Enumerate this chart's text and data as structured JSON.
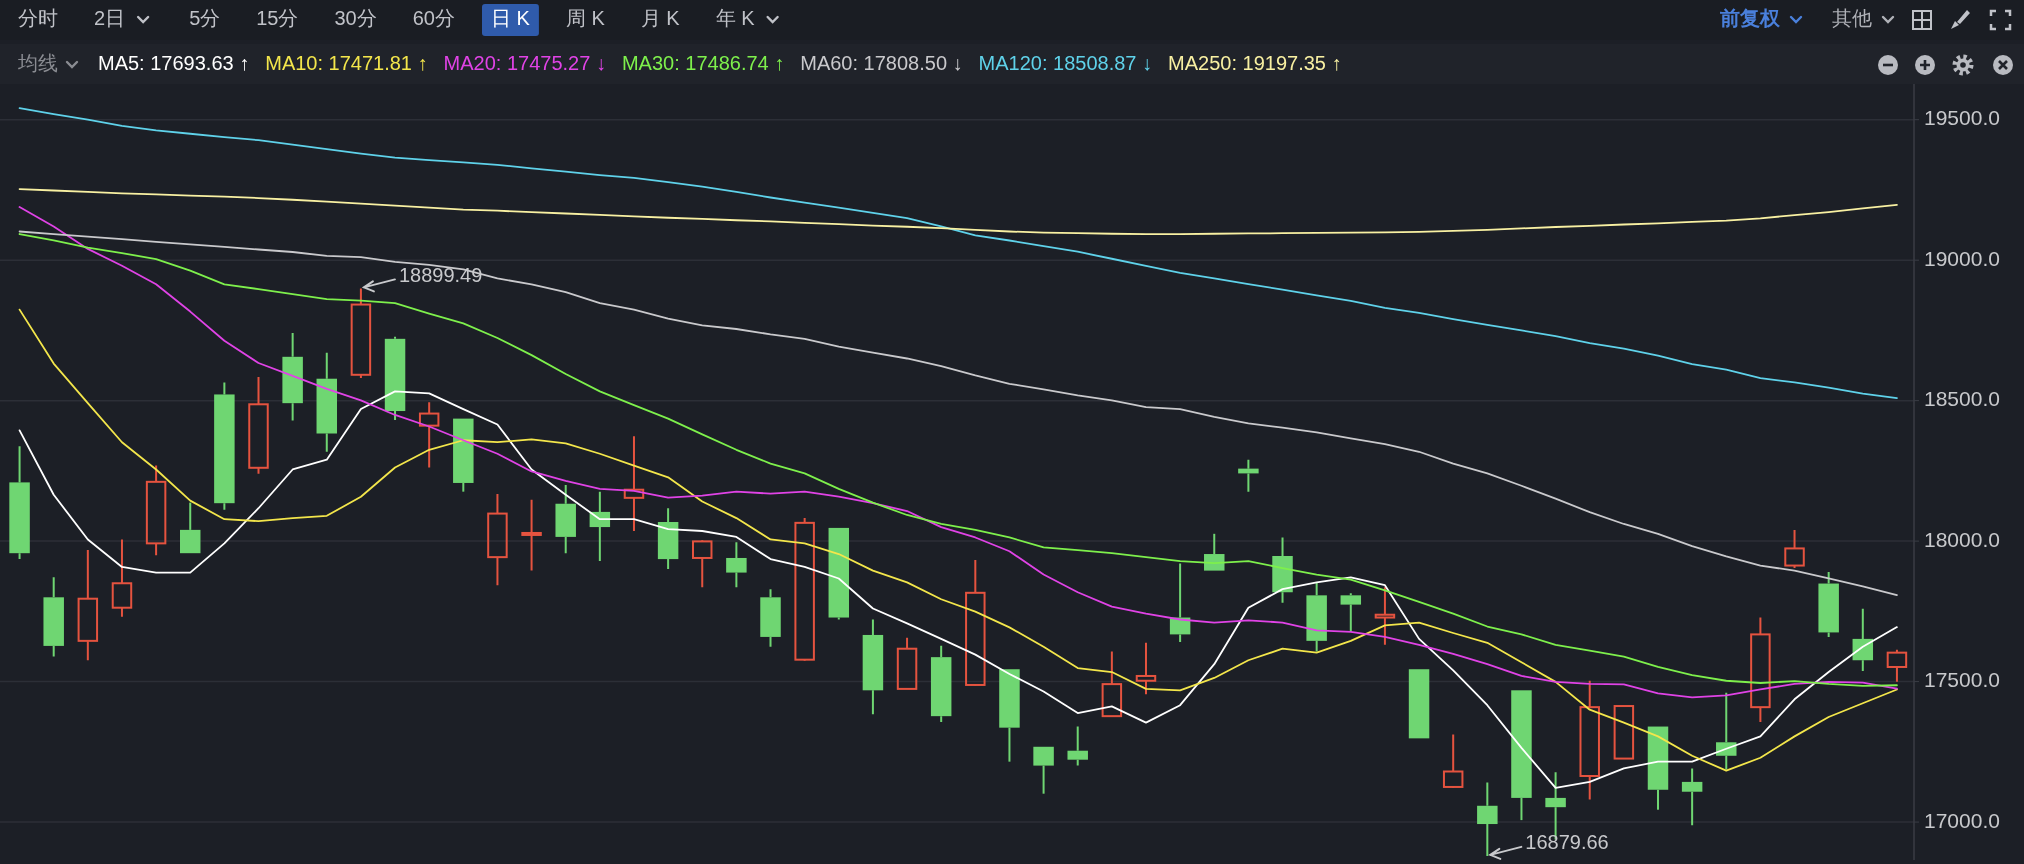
{
  "chart_data": {
    "type": "candlestick",
    "categories": [
      null,
      null,
      null,
      null,
      null,
      null,
      null,
      null,
      null,
      null,
      null,
      null,
      null,
      null,
      null,
      null,
      null,
      null,
      null,
      null,
      null,
      null,
      null,
      null,
      null,
      null,
      null,
      null,
      null,
      null,
      null,
      null,
      null,
      null,
      null,
      null,
      null,
      null,
      null,
      null,
      null,
      null,
      null,
      null,
      null,
      null,
      null,
      null,
      null,
      null,
      null,
      null,
      null,
      null,
      null,
      null
    ],
    "ohlc": [
      [
        18209,
        18338,
        17936,
        17957
      ],
      [
        17800,
        17871,
        17589,
        17627
      ],
      [
        17645,
        17968,
        17576,
        17795
      ],
      [
        17763,
        18006,
        17731,
        17850
      ],
      [
        17992,
        18269,
        17950,
        18211
      ],
      [
        18040,
        18137,
        17957,
        17957
      ],
      [
        18522,
        18565,
        18112,
        18135
      ],
      [
        18261,
        18584,
        18240,
        18487
      ],
      [
        18656,
        18741,
        18429,
        18491
      ],
      [
        18578,
        18670,
        18318,
        18383
      ],
      [
        18592,
        18899.49,
        18581,
        18842
      ],
      [
        18720,
        18727,
        18431,
        18463
      ],
      [
        18411,
        18494,
        18262,
        18454
      ],
      [
        18436,
        18436,
        18176,
        18207
      ],
      [
        17943,
        18168,
        17843,
        18098
      ],
      [
        18024,
        18147,
        17895,
        18029
      ],
      [
        18133,
        18200,
        17957,
        18015
      ],
      [
        18104,
        18176,
        17929,
        18050
      ],
      [
        18154,
        18373,
        18036,
        18183
      ],
      [
        18068,
        18117,
        17901,
        17936
      ],
      [
        17940,
        18003,
        17836,
        17999
      ],
      [
        17940,
        17996,
        17836,
        17888
      ],
      [
        17800,
        17829,
        17624,
        17659
      ],
      [
        17578,
        18082,
        17574,
        18065
      ],
      [
        18047,
        18047,
        17721,
        17728
      ],
      [
        17666,
        17721,
        17384,
        17469
      ],
      [
        17474,
        17656,
        17474,
        17617
      ],
      [
        17587,
        17628,
        17356,
        17377
      ],
      [
        17488,
        17933,
        17485,
        17816
      ],
      [
        17544,
        17544,
        17215,
        17336
      ],
      [
        17268,
        17268,
        17101,
        17201
      ],
      [
        17254,
        17340,
        17201,
        17222
      ],
      [
        17377,
        17607,
        17374,
        17491
      ],
      [
        17503,
        17638,
        17455,
        17520
      ],
      [
        17728,
        17920,
        17641,
        17668
      ],
      [
        17954,
        18026,
        17895,
        17895
      ],
      [
        18258,
        18290,
        18176,
        18241
      ],
      [
        17947,
        18013,
        17781,
        17818
      ],
      [
        17807,
        17853,
        17607,
        17645
      ],
      [
        17807,
        17814,
        17677,
        17774
      ],
      [
        17728,
        17836,
        17631,
        17738
      ],
      [
        17544,
        17544,
        17298,
        17298
      ],
      [
        17125,
        17312,
        17122,
        17180
      ],
      [
        17058,
        17141,
        16879.66,
        16993
      ],
      [
        17469,
        17469,
        17007,
        17086
      ],
      [
        17086,
        17177,
        16938,
        17053
      ],
      [
        17164,
        17503,
        17080,
        17409
      ],
      [
        17226,
        17413,
        17226,
        17413
      ],
      [
        17340,
        17340,
        17044,
        17115
      ],
      [
        17143,
        17191,
        16989,
        17108
      ],
      [
        17284,
        17460,
        17187,
        17236
      ],
      [
        17409,
        17728,
        17356,
        17668
      ],
      [
        17913,
        18040,
        17904,
        17974
      ],
      [
        17849,
        17890,
        17659,
        17675
      ],
      [
        17652,
        17759,
        17538,
        17576
      ],
      [
        17552,
        17613,
        17499,
        17603
      ]
    ],
    "colors": [
      "#6fd672",
      "#6fd672",
      "#e5533f",
      "#e5533f",
      "#e5533f",
      "#6fd672",
      "#6fd672",
      "#e5533f",
      "#6fd672",
      "#6fd672",
      "#e5533f",
      "#6fd672",
      "#e5533f",
      "#6fd672",
      "#e5533f",
      "#e5533f",
      "#6fd672",
      "#6fd672",
      "#e5533f",
      "#6fd672",
      "#e5533f",
      "#6fd672",
      "#6fd672",
      "#e5533f",
      "#6fd672",
      "#6fd672",
      "#e5533f",
      "#6fd672",
      "#e5533f",
      "#6fd672",
      "#6fd672",
      "#6fd672",
      "#e5533f",
      "#e5533f",
      "#6fd672",
      "#6fd672",
      "#6fd672",
      "#6fd672",
      "#6fd672",
      "#6fd672",
      "#e5533f",
      "#6fd672",
      "#e5533f",
      "#6fd672",
      "#6fd672",
      "#6fd672",
      "#e5533f",
      "#e5533f",
      "#6fd672",
      "#6fd672",
      "#6fd672",
      "#e5533f",
      "#e5533f",
      "#6fd672",
      "#6fd672",
      "#e5533f"
    ],
    "series": [
      {
        "name": "MA5: 17693.63 ↑",
        "type": "line",
        "color": "#ffffff",
        "values": [
          18394,
          18165,
          18006,
          17908,
          17888,
          17888,
          17992,
          18117,
          18255,
          18290,
          18470,
          18533,
          18526,
          18470,
          18415,
          18255,
          18165,
          18078,
          18078,
          18043,
          18036,
          18015,
          17936,
          17908,
          17867,
          17760,
          17707,
          17652,
          17596,
          17527,
          17465,
          17388,
          17412,
          17354,
          17416,
          17562,
          17763,
          17829,
          17853,
          17871,
          17843,
          17652,
          17540,
          17416,
          17264,
          17122,
          17143,
          17191,
          17215,
          17215,
          17261,
          17305,
          17437,
          17534,
          17624,
          17694
        ]
      },
      {
        "name": "MA10: 17471.81 ↑",
        "type": "line",
        "color": "#f3e64b",
        "values": [
          18824,
          18632,
          18491,
          18352,
          18255,
          18144,
          18078,
          18071,
          18082,
          18090,
          18158,
          18262,
          18325,
          18359,
          18352,
          18362,
          18348,
          18311,
          18269,
          18227,
          18141,
          18082,
          18006,
          17992,
          17954,
          17895,
          17853,
          17793,
          17749,
          17693,
          17624,
          17548,
          17534,
          17474,
          17469,
          17513,
          17576,
          17617,
          17603,
          17645,
          17700,
          17710,
          17673,
          17638,
          17569,
          17499,
          17400,
          17354,
          17305,
          17236,
          17183,
          17229,
          17305,
          17374,
          17423,
          17472
        ]
      },
      {
        "name": "MA20: 17475.27 ↓",
        "type": "line",
        "color": "#e043e6",
        "values": [
          19189,
          19120,
          19040,
          18980,
          18914,
          18817,
          18713,
          18634,
          18588,
          18542,
          18501,
          18449,
          18408,
          18359,
          18311,
          18248,
          18214,
          18186,
          18179,
          18155,
          18162,
          18176,
          18169,
          18176,
          18158,
          18135,
          18107,
          18050,
          18013,
          17964,
          17881,
          17818,
          17767,
          17742,
          17721,
          17710,
          17718,
          17710,
          17682,
          17677,
          17659,
          17631,
          17599,
          17562,
          17520,
          17499,
          17492,
          17490,
          17458,
          17444,
          17451,
          17472,
          17492,
          17499,
          17496,
          17475
        ]
      },
      {
        "name": "MA30: 17486.74 ↑",
        "type": "line",
        "color": "#7ef04c",
        "values": [
          19093,
          19070,
          19045,
          19025,
          19004,
          18963,
          18914,
          18897,
          18879,
          18861,
          18856,
          18847,
          18810,
          18775,
          18723,
          18662,
          18595,
          18533,
          18484,
          18436,
          18380,
          18325,
          18276,
          18241,
          18186,
          18137,
          18093,
          18061,
          18040,
          18013,
          17978,
          17968,
          17957,
          17943,
          17929,
          17922,
          17929,
          17904,
          17881,
          17863,
          17825,
          17784,
          17742,
          17696,
          17668,
          17631,
          17610,
          17589,
          17552,
          17523,
          17503,
          17495,
          17502,
          17492,
          17485,
          17487
        ]
      },
      {
        "name": "MA60: 17808.50 ↓",
        "type": "line",
        "color": "#c9c9cc",
        "values": [
          19102,
          19093,
          19084,
          19075,
          19065,
          19056,
          19047,
          19038,
          19029,
          19015,
          19011,
          18994,
          18983,
          18967,
          18935,
          18914,
          18886,
          18847,
          18824,
          18792,
          18768,
          18755,
          18736,
          18720,
          18692,
          18671,
          18650,
          18623,
          18590,
          18560,
          18540,
          18519,
          18501,
          18477,
          18470,
          18442,
          18419,
          18404,
          18387,
          18366,
          18345,
          18318,
          18276,
          18241,
          18197,
          18151,
          18103,
          18061,
          18026,
          17982,
          17946,
          17913,
          17895,
          17867,
          17839,
          17808
        ]
      },
      {
        "name": "MA120: 18508.87 ↓",
        "type": "line",
        "color": "#5fd2ea",
        "values": [
          19541,
          19520,
          19500,
          19478,
          19462,
          19450,
          19438,
          19427,
          19411,
          19395,
          19379,
          19365,
          19356,
          19348,
          19339,
          19327,
          19315,
          19303,
          19293,
          19278,
          19262,
          19243,
          19223,
          19205,
          19187,
          19168,
          19150,
          19120,
          19088,
          19070,
          19050,
          19030,
          19005,
          18980,
          18955,
          18935,
          18915,
          18895,
          18875,
          18855,
          18830,
          18812,
          18790,
          18770,
          18750,
          18730,
          18705,
          18685,
          18660,
          18630,
          18610,
          18580,
          18565,
          18546,
          18525,
          18509
        ]
      },
      {
        "name": "MA250: 19197.35 ↑",
        "type": "line",
        "color": "#f8f0a2",
        "values": [
          19253,
          19248,
          19243,
          19238,
          19234,
          19230,
          19226,
          19221,
          19215,
          19208,
          19201,
          19194,
          19187,
          19180,
          19176,
          19171,
          19166,
          19161,
          19156,
          19151,
          19147,
          19142,
          19138,
          19133,
          19128,
          19123,
          19119,
          19114,
          19108,
          19102,
          19098,
          19096,
          19094,
          19093,
          19093,
          19094,
          19095,
          19096,
          19097,
          19098,
          19099,
          19101,
          19104,
          19108,
          19113,
          19118,
          19122,
          19127,
          19131,
          19136,
          19141,
          19149,
          19160,
          19171,
          19184,
          19197
        ]
      }
    ],
    "ylim": [
      16865,
      19627
    ],
    "yticks": [
      {
        "value": 17000,
        "label": "17000.0"
      },
      {
        "value": 17500,
        "label": "17500.0"
      },
      {
        "value": 18000,
        "label": "18000.0"
      },
      {
        "value": 18500,
        "label": "18500.0"
      },
      {
        "value": 19000,
        "label": "19000.0"
      },
      {
        "value": 19500,
        "label": "19500.0"
      }
    ],
    "grid": "y",
    "legend": "top left",
    "annotations": [
      "分时",
      "2日",
      "5分",
      "15分",
      "30分",
      "60分",
      "日 K",
      "周 K",
      "月 K",
      "年 K",
      "前复权",
      "其他",
      "均线",
      "18899.49",
      "16879.66"
    ]
  }
}
